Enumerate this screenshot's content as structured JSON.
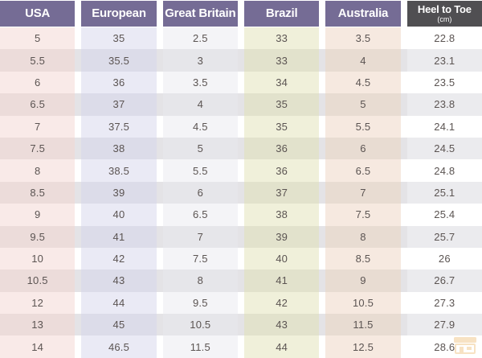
{
  "chart_data": {
    "type": "table",
    "columns": [
      {
        "key": "usa",
        "label": "USA"
      },
      {
        "key": "european",
        "label": "European"
      },
      {
        "key": "great_britain",
        "label": "Great Britain"
      },
      {
        "key": "brazil",
        "label": "Brazil"
      },
      {
        "key": "australia",
        "label": "Australia"
      },
      {
        "key": "heel_to_toe",
        "label": "Heel to Toe",
        "sublabel": "(cm)"
      }
    ],
    "rows": [
      [
        "5",
        "35",
        "2.5",
        "33",
        "3.5",
        "22.8"
      ],
      [
        "5.5",
        "35.5",
        "3",
        "33",
        "4",
        "23.1"
      ],
      [
        "6",
        "36",
        "3.5",
        "34",
        "4.5",
        "23.5"
      ],
      [
        "6.5",
        "37",
        "4",
        "35",
        "5",
        "23.8"
      ],
      [
        "7",
        "37.5",
        "4.5",
        "35",
        "5.5",
        "24.1"
      ],
      [
        "7.5",
        "38",
        "5",
        "36",
        "6",
        "24.5"
      ],
      [
        "8",
        "38.5",
        "5.5",
        "36",
        "6.5",
        "24.8"
      ],
      [
        "8.5",
        "39",
        "6",
        "37",
        "7",
        "25.1"
      ],
      [
        "9",
        "40",
        "6.5",
        "38",
        "7.5",
        "25.4"
      ],
      [
        "9.5",
        "41",
        "7",
        "39",
        "8",
        "25.7"
      ],
      [
        "10",
        "42",
        "7.5",
        "40",
        "8.5",
        "26"
      ],
      [
        "10.5",
        "43",
        "8",
        "41",
        "9",
        "26.7"
      ],
      [
        "12",
        "44",
        "9.5",
        "42",
        "10.5",
        "27.3"
      ],
      [
        "13",
        "45",
        "10.5",
        "43",
        "11.5",
        "27.9"
      ],
      [
        "14",
        "46.5",
        "11.5",
        "44",
        "12.5",
        "28.6"
      ]
    ],
    "layout": {
      "header_style": "colored-blocks",
      "row_striping": true,
      "legend_position": "none"
    }
  },
  "colors": {
    "header-purple": "#756c95",
    "header-dark": "#504f52",
    "header-text": "#ffffff",
    "text-dark": "#5b5452",
    "row-shade": "#e4e3e6",
    "col-usa-light": "#f9eae8",
    "col-usa-dark": "#ecdcda",
    "col-european-light": "#eaeaf5",
    "col-european-dark": "#dcdce9",
    "col-gb-light": "#f4f4f7",
    "col-gb-dark": "#e6e6ea",
    "col-brazil-light": "#f0f0da",
    "col-brazil-dark": "#e2e2cc",
    "col-australia-light": "#f6e9e0",
    "col-australia-dark": "#e8dcd2",
    "col-heel-light": "#ffffff",
    "col-heel-dark": "#ebebee",
    "watermark-orange": "#e8a33d"
  },
  "watermark": {
    "icon": "shop-logo-icon"
  }
}
